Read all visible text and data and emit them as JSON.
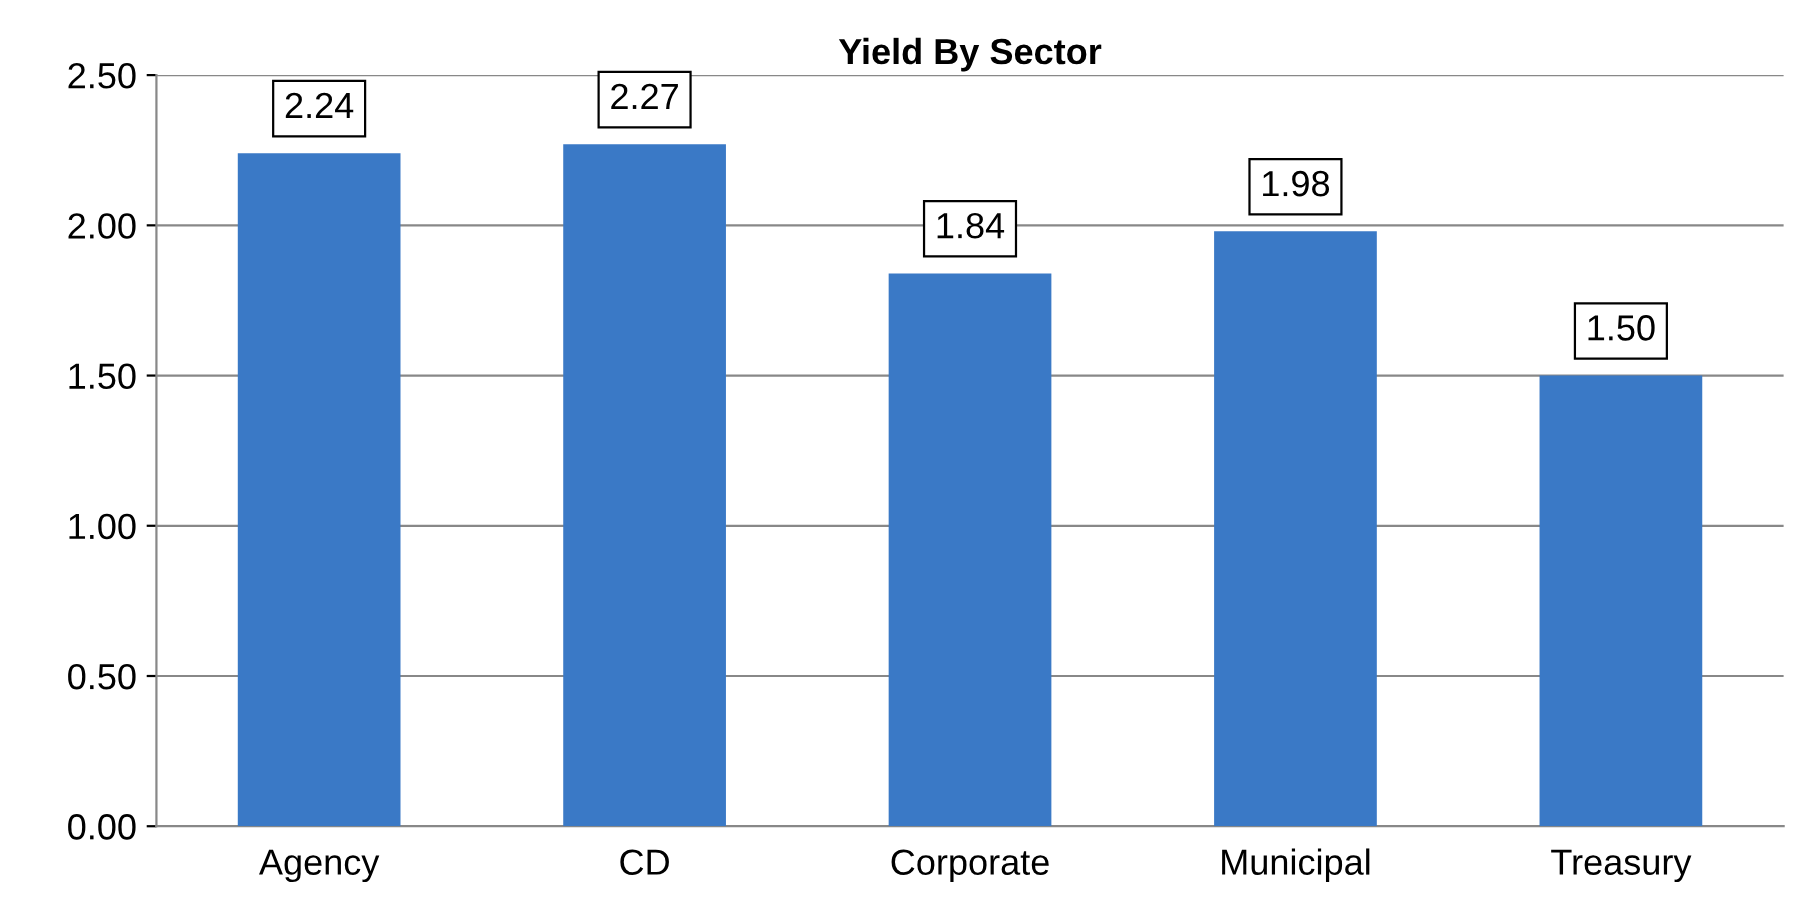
{
  "chart_data": {
    "type": "bar",
    "title": "Yield By Sector",
    "categories": [
      "Agency",
      "CD",
      "Corporate",
      "Municipal",
      "Treasury"
    ],
    "values": [
      2.24,
      2.27,
      1.84,
      1.98,
      1.5
    ],
    "value_labels": [
      "2.24",
      "2.27",
      "1.84",
      "1.98",
      "1.50"
    ],
    "color": "#3a79c6",
    "ylim": [
      0,
      2.5
    ],
    "yticks": [
      {
        "value": 0,
        "label": "0.00"
      },
      {
        "value": 0.5,
        "label": "0.50"
      },
      {
        "value": 1.0,
        "label": "1.00"
      },
      {
        "value": 1.5,
        "label": "1.50"
      },
      {
        "value": 2.0,
        "label": "2.00"
      },
      {
        "value": 2.5,
        "label": "2.50"
      }
    ],
    "grid": "y"
  }
}
